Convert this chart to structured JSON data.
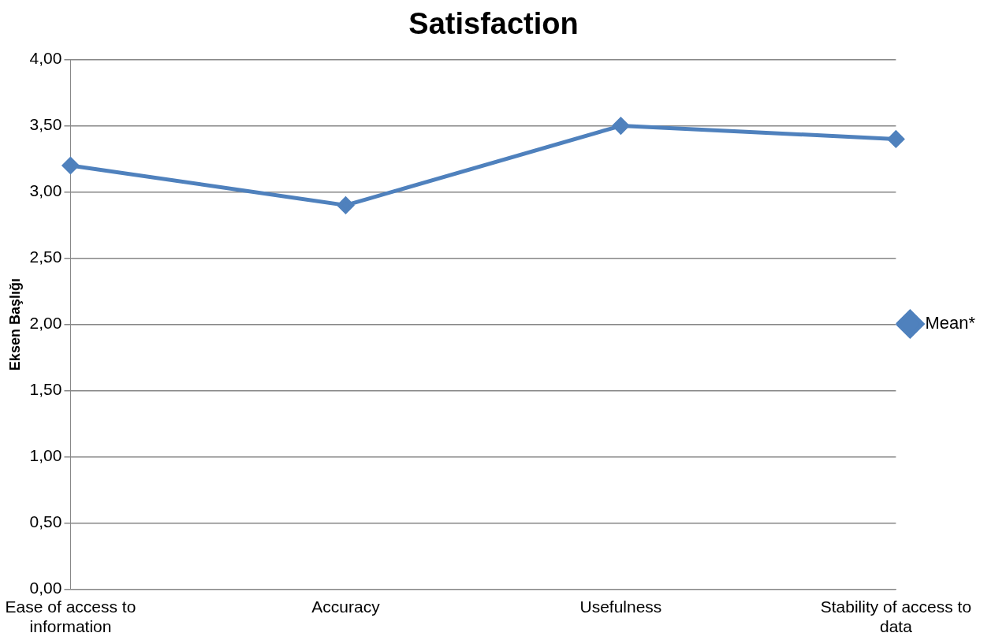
{
  "chart_data": {
    "type": "line",
    "title": "Satisfaction",
    "ylabel": "Eksen Başlığı",
    "categories": [
      "Ease of access to information",
      "Accuracy",
      "Usefulness",
      "Stability of access to data"
    ],
    "series": [
      {
        "name": "Mean*",
        "color": "#4f81bd",
        "values": [
          3.2,
          2.9,
          3.5,
          3.4
        ]
      }
    ],
    "ylim": [
      0,
      4
    ],
    "yticks": [
      {
        "value": 0,
        "label": "0,00"
      },
      {
        "value": 0.5,
        "label": "0,50"
      },
      {
        "value": 1,
        "label": "1,00"
      },
      {
        "value": 1.5,
        "label": "1,50"
      },
      {
        "value": 2,
        "label": "2,00"
      },
      {
        "value": 2.5,
        "label": "2,50"
      },
      {
        "value": 3,
        "label": "3,00"
      },
      {
        "value": 3.5,
        "label": "3,50"
      },
      {
        "value": 4,
        "label": "4,00"
      }
    ],
    "grid": "y",
    "legend": "right",
    "marker": "diamond",
    "line_style": "solid"
  }
}
